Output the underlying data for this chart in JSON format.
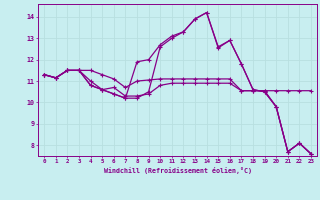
{
  "xlabel": "Windchill (Refroidissement éolien,°C)",
  "background_color": "#c8eef0",
  "line_color": "#880088",
  "grid_color": "#aadddd",
  "ylim": [
    7.5,
    14.6
  ],
  "xlim": [
    -0.5,
    23.5
  ],
  "yticks": [
    8,
    9,
    10,
    11,
    12,
    13,
    14
  ],
  "xticks": [
    0,
    1,
    2,
    3,
    4,
    5,
    6,
    7,
    8,
    9,
    10,
    11,
    12,
    13,
    14,
    15,
    16,
    17,
    18,
    19,
    20,
    21,
    22,
    23
  ],
  "series": [
    [
      11.3,
      11.15,
      11.5,
      11.5,
      11.5,
      11.3,
      11.1,
      10.7,
      11.0,
      11.05,
      11.1,
      11.1,
      11.1,
      11.1,
      11.1,
      11.1,
      11.1,
      10.55,
      10.55,
      10.55,
      10.55,
      10.55,
      10.55,
      10.55
    ],
    [
      11.3,
      11.15,
      11.5,
      11.5,
      11.0,
      10.6,
      10.7,
      10.3,
      10.3,
      10.4,
      10.8,
      10.9,
      10.9,
      10.9,
      10.9,
      10.9,
      10.9,
      10.55,
      10.55,
      10.55,
      9.8,
      7.7,
      8.1,
      7.6
    ],
    [
      11.3,
      11.15,
      11.5,
      11.5,
      10.8,
      10.6,
      10.4,
      10.2,
      10.2,
      10.5,
      12.6,
      13.0,
      13.3,
      13.9,
      14.2,
      12.6,
      12.9,
      11.8,
      10.6,
      10.5,
      9.8,
      7.7,
      8.1,
      7.6
    ],
    [
      11.3,
      11.15,
      11.5,
      11.5,
      10.8,
      10.6,
      10.4,
      10.2,
      11.9,
      12.0,
      12.7,
      13.1,
      13.3,
      13.9,
      14.2,
      12.55,
      12.9,
      11.8,
      10.6,
      10.5,
      9.8,
      7.7,
      8.1,
      7.6
    ]
  ]
}
